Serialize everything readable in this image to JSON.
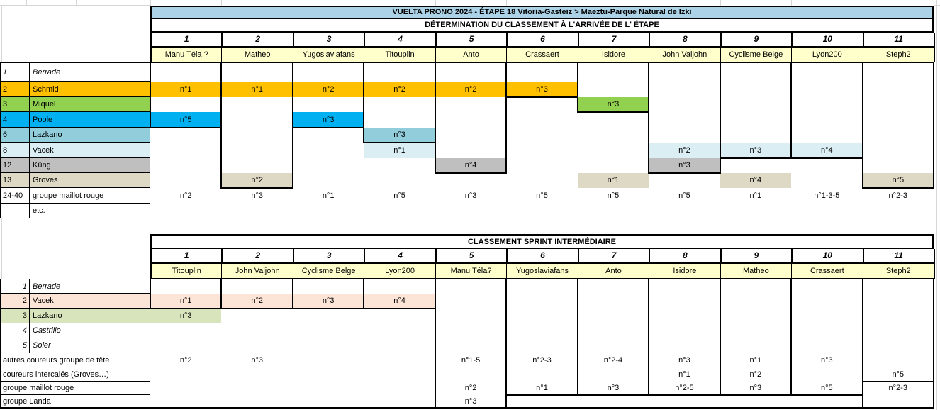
{
  "palette": {
    "title_bar": "#ABD2E6",
    "header_yellow": "#FFFFCC",
    "orange": "#FFC000",
    "green": "#92D050",
    "bright_blue": "#00B0F0",
    "mid_blue": "#92CDDC",
    "pale_blue": "#DAEEF3",
    "gray": "#BFBFBF",
    "beige": "#DDD9C4",
    "peach": "#FCE4D6",
    "light_green": "#D8E4BC",
    "grid_faint": "#D6D6D6",
    "border": "#000000"
  },
  "finish_table": {
    "title": "VUELTA PRONO 2024  - ÉTAPE 18 Vitoria-Gasteiz > Maeztu-Parque Natural de Izki",
    "subtitle": "DÉTERMINATION DU CLASSEMENT À L'ARRIVÉE DE L' ÉTAPE",
    "columns": [
      {
        "num": "1",
        "player": "Manu Téla ?"
      },
      {
        "num": "2",
        "player": "Matheo"
      },
      {
        "num": "3",
        "player": "Yugoslaviafans"
      },
      {
        "num": "4",
        "player": "Titouplin"
      },
      {
        "num": "5",
        "player": "Anto"
      },
      {
        "num": "6",
        "player": "Crassaert"
      },
      {
        "num": "7",
        "player": "Isidore"
      },
      {
        "num": "8",
        "player": "John Valjohn"
      },
      {
        "num": "9",
        "player": "Cyclisme Belge"
      },
      {
        "num": "10",
        "player": "Lyon200"
      },
      {
        "num": "11",
        "player": "Steph2"
      }
    ],
    "rows": [
      {
        "num": "1",
        "label": "Berrade",
        "italic": true,
        "color": null
      },
      {
        "num": "2",
        "label": "Schmid",
        "italic": false,
        "color": "orange"
      },
      {
        "num": "3",
        "label": "Miquel",
        "italic": false,
        "color": "green"
      },
      {
        "num": "4",
        "label": "Poole",
        "italic": false,
        "color": "bright_blue"
      },
      {
        "num": "6",
        "label": "Lazkano",
        "italic": false,
        "color": "mid_blue"
      },
      {
        "num": "8",
        "label": "Vacek",
        "italic": false,
        "color": "pale_blue"
      },
      {
        "num": "12",
        "label": "Küng",
        "italic": false,
        "color": "gray"
      },
      {
        "num": "13",
        "label": "Groves",
        "italic": false,
        "color": "beige"
      },
      {
        "num": "24-40",
        "label": "groupe maillot rouge",
        "italic": false,
        "color": null
      },
      {
        "num": "",
        "label": "etc.",
        "italic": false,
        "color": null
      }
    ],
    "boxes": [
      {
        "col": 0,
        "from": 0,
        "to": 3
      },
      {
        "col": 1,
        "from": 0,
        "to": 7
      },
      {
        "col": 2,
        "from": 0,
        "to": 3
      },
      {
        "col": 3,
        "from": 0,
        "to": 4
      },
      {
        "col": 4,
        "from": 0,
        "to": 6
      },
      {
        "col": 5,
        "from": 0,
        "to": 1
      },
      {
        "col": 6,
        "from": 0,
        "to": 2
      },
      {
        "col": 7,
        "from": 0,
        "to": 6
      },
      {
        "col": 8,
        "from": 0,
        "to": 5
      },
      {
        "col": 9,
        "from": 0,
        "to": 5
      },
      {
        "col": 10,
        "from": 0,
        "to": 7
      }
    ],
    "cells": [
      {
        "col": 0,
        "row": 1,
        "value": "n°1",
        "color": "orange"
      },
      {
        "col": 0,
        "row": 3,
        "value": "n°5",
        "color": "bright_blue"
      },
      {
        "col": 0,
        "row": 8,
        "value": "n°2",
        "color": null
      },
      {
        "col": 1,
        "row": 1,
        "value": "n°1",
        "color": "orange"
      },
      {
        "col": 1,
        "row": 7,
        "value": "n°2",
        "color": "beige"
      },
      {
        "col": 1,
        "row": 8,
        "value": "n°3",
        "color": null
      },
      {
        "col": 2,
        "row": 1,
        "value": "n°2",
        "color": "orange"
      },
      {
        "col": 2,
        "row": 3,
        "value": "n°3",
        "color": "bright_blue"
      },
      {
        "col": 2,
        "row": 8,
        "value": "n°1",
        "color": null
      },
      {
        "col": 3,
        "row": 1,
        "value": "n°2",
        "color": "orange"
      },
      {
        "col": 3,
        "row": 4,
        "value": "n°3",
        "color": "mid_blue"
      },
      {
        "col": 3,
        "row": 5,
        "value": "n°1",
        "color": "pale_blue"
      },
      {
        "col": 3,
        "row": 8,
        "value": "n°5",
        "color": null
      },
      {
        "col": 4,
        "row": 1,
        "value": "n°2",
        "color": "orange"
      },
      {
        "col": 4,
        "row": 6,
        "value": "n°4",
        "color": "gray"
      },
      {
        "col": 4,
        "row": 8,
        "value": "n°3",
        "color": null
      },
      {
        "col": 5,
        "row": 1,
        "value": "n°3",
        "color": "orange"
      },
      {
        "col": 5,
        "row": 8,
        "value": "n°5",
        "color": null
      },
      {
        "col": 6,
        "row": 2,
        "value": "n°3",
        "color": "green"
      },
      {
        "col": 6,
        "row": 7,
        "value": "n°1",
        "color": "beige"
      },
      {
        "col": 6,
        "row": 8,
        "value": "n°5",
        "color": null
      },
      {
        "col": 7,
        "row": 5,
        "value": "n°2",
        "color": "pale_blue"
      },
      {
        "col": 7,
        "row": 6,
        "value": "n°3",
        "color": "gray"
      },
      {
        "col": 7,
        "row": 8,
        "value": "n°5",
        "color": null
      },
      {
        "col": 8,
        "row": 5,
        "value": "n°3",
        "color": "pale_blue"
      },
      {
        "col": 8,
        "row": 7,
        "value": "n°4",
        "color": "beige"
      },
      {
        "col": 8,
        "row": 8,
        "value": "n°1",
        "color": null
      },
      {
        "col": 9,
        "row": 5,
        "value": "n°4",
        "color": "pale_blue"
      },
      {
        "col": 9,
        "row": 8,
        "value": "n°1-3-5",
        "color": null
      },
      {
        "col": 10,
        "row": 7,
        "value": "n°5",
        "color": "beige"
      },
      {
        "col": 10,
        "row": 8,
        "value": "n°2-3",
        "color": null
      }
    ]
  },
  "sprint_table": {
    "title": "CLASSEMENT SPRINT INTERMÉDIAIRE",
    "columns": [
      {
        "num": "1",
        "player": "Titouplin"
      },
      {
        "num": "2",
        "player": "John Valjohn"
      },
      {
        "num": "3",
        "player": "Cyclisme Belge"
      },
      {
        "num": "4",
        "player": "Lyon200"
      },
      {
        "num": "5",
        "player": "Manu Téla?"
      },
      {
        "num": "6",
        "player": "Yugoslaviafans"
      },
      {
        "num": "7",
        "player": "Anto"
      },
      {
        "num": "8",
        "player": "Isidore"
      },
      {
        "num": "9",
        "player": "Matheo"
      },
      {
        "num": "10",
        "player": "Crassaert"
      },
      {
        "num": "11",
        "player": "Steph2"
      }
    ],
    "rows": [
      {
        "num": "1",
        "label": "Berrade",
        "italic": true,
        "merged": false,
        "color": null
      },
      {
        "num": "2",
        "label": "Vacek",
        "italic": false,
        "merged": false,
        "color": "peach"
      },
      {
        "num": "3",
        "label": "Lazkano",
        "italic": false,
        "merged": false,
        "color": "light_green"
      },
      {
        "num": "4",
        "label": "Castrillo",
        "italic": true,
        "merged": false,
        "color": null
      },
      {
        "num": "5",
        "label": "Soler",
        "italic": true,
        "merged": false,
        "color": null
      },
      {
        "num": "",
        "label": "autres coureurs groupe de tête",
        "italic": false,
        "merged": true,
        "color": null
      },
      {
        "num": "",
        "label": "coureurs intercalés (Groves…)",
        "italic": false,
        "merged": true,
        "color": null
      },
      {
        "num": "",
        "label": "groupe maillot rouge",
        "italic": false,
        "merged": true,
        "color": null
      },
      {
        "num": "",
        "label": "groupe Landa",
        "italic": false,
        "merged": true,
        "color": null
      }
    ],
    "boxes": [
      {
        "col": 0,
        "from": 0,
        "to": 1
      },
      {
        "col": 1,
        "from": 0,
        "to": 1
      },
      {
        "col": 2,
        "from": 0,
        "to": 1
      },
      {
        "col": 3,
        "from": 0,
        "to": 1
      },
      {
        "col": 4,
        "from": 0,
        "to": 8
      },
      {
        "col": 5,
        "from": 0,
        "to": 7
      },
      {
        "col": 6,
        "from": 0,
        "to": 7
      },
      {
        "col": 7,
        "from": 0,
        "to": 7
      },
      {
        "col": 8,
        "from": 0,
        "to": 7
      },
      {
        "col": 9,
        "from": 0,
        "to": 7
      },
      {
        "col": 10,
        "from": 0,
        "to": 8,
        "hline_above_row": 7
      }
    ],
    "cells": [
      {
        "col": 0,
        "row": 1,
        "value": "n°1",
        "color": "peach"
      },
      {
        "col": 1,
        "row": 1,
        "value": "n°2",
        "color": "peach"
      },
      {
        "col": 2,
        "row": 1,
        "value": "n°3",
        "color": "peach"
      },
      {
        "col": 3,
        "row": 1,
        "value": "n°4",
        "color": "peach"
      },
      {
        "col": 0,
        "row": 2,
        "value": "n°3",
        "color": "light_green"
      },
      {
        "col": 0,
        "row": 5,
        "value": "n°2",
        "color": null
      },
      {
        "col": 1,
        "row": 5,
        "value": "n°3",
        "color": null
      },
      {
        "col": 4,
        "row": 5,
        "value": "n°1-5",
        "color": null
      },
      {
        "col": 5,
        "row": 5,
        "value": "n°2-3",
        "color": null
      },
      {
        "col": 6,
        "row": 5,
        "value": "n°2-4",
        "color": null
      },
      {
        "col": 7,
        "row": 5,
        "value": "n°3",
        "color": null
      },
      {
        "col": 8,
        "row": 5,
        "value": "n°1",
        "color": null
      },
      {
        "col": 9,
        "row": 5,
        "value": "n°3",
        "color": null
      },
      {
        "col": 7,
        "row": 6,
        "value": "n°1",
        "color": null
      },
      {
        "col": 8,
        "row": 6,
        "value": "n°2",
        "color": null
      },
      {
        "col": 10,
        "row": 6,
        "value": "n°5",
        "color": null
      },
      {
        "col": 4,
        "row": 7,
        "value": "n°2",
        "color": null
      },
      {
        "col": 5,
        "row": 7,
        "value": "n°1",
        "color": null
      },
      {
        "col": 6,
        "row": 7,
        "value": "n°3",
        "color": null
      },
      {
        "col": 7,
        "row": 7,
        "value": "n°2-5",
        "color": null
      },
      {
        "col": 8,
        "row": 7,
        "value": "n°3",
        "color": null
      },
      {
        "col": 9,
        "row": 7,
        "value": "n°5",
        "color": null
      },
      {
        "col": 10,
        "row": 7,
        "value": "n°2-3",
        "color": null
      },
      {
        "col": 4,
        "row": 8,
        "value": "n°3",
        "color": null
      }
    ]
  }
}
